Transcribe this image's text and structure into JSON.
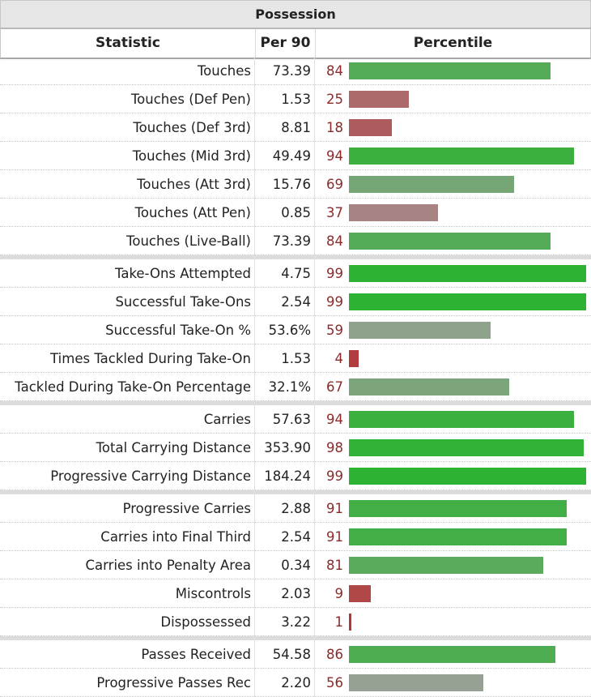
{
  "table": {
    "caption": "Possession",
    "headers": {
      "statistic": "Statistic",
      "per90": "Per 90",
      "percentile": "Percentile"
    }
  },
  "chart_data": {
    "type": "bar",
    "orientation": "horizontal",
    "title": "Possession",
    "xlim": [
      0,
      100
    ],
    "categories": [
      "Touches",
      "Touches (Def Pen)",
      "Touches (Def 3rd)",
      "Touches (Mid 3rd)",
      "Touches (Att 3rd)",
      "Touches (Att Pen)",
      "Touches (Live-Ball)",
      "Take-Ons Attempted",
      "Successful Take-Ons",
      "Successful Take-On %",
      "Times Tackled During Take-On",
      "Tackled During Take-On Percentage",
      "Carries",
      "Total Carrying Distance",
      "Progressive Carrying Distance",
      "Progressive Carries",
      "Carries into Final Third",
      "Carries into Penalty Area",
      "Miscontrols",
      "Dispossessed",
      "Passes Received",
      "Progressive Passes Rec"
    ],
    "per90": [
      "73.39",
      "1.53",
      "8.81",
      "49.49",
      "15.76",
      "0.85",
      "73.39",
      "4.75",
      "2.54",
      "53.6%",
      "1.53",
      "32.1%",
      "57.63",
      "353.90",
      "184.24",
      "2.88",
      "2.54",
      "0.34",
      "2.03",
      "3.22",
      "54.58",
      "2.20"
    ],
    "values": [
      84,
      25,
      18,
      94,
      69,
      37,
      84,
      99,
      99,
      59,
      4,
      67,
      94,
      98,
      99,
      91,
      91,
      81,
      9,
      1,
      86,
      56
    ],
    "groups": [
      7,
      5,
      3,
      5,
      2
    ],
    "colors": {
      "low": "#b23535",
      "mid": "#a59fa0",
      "high": "#2cb232"
    }
  }
}
